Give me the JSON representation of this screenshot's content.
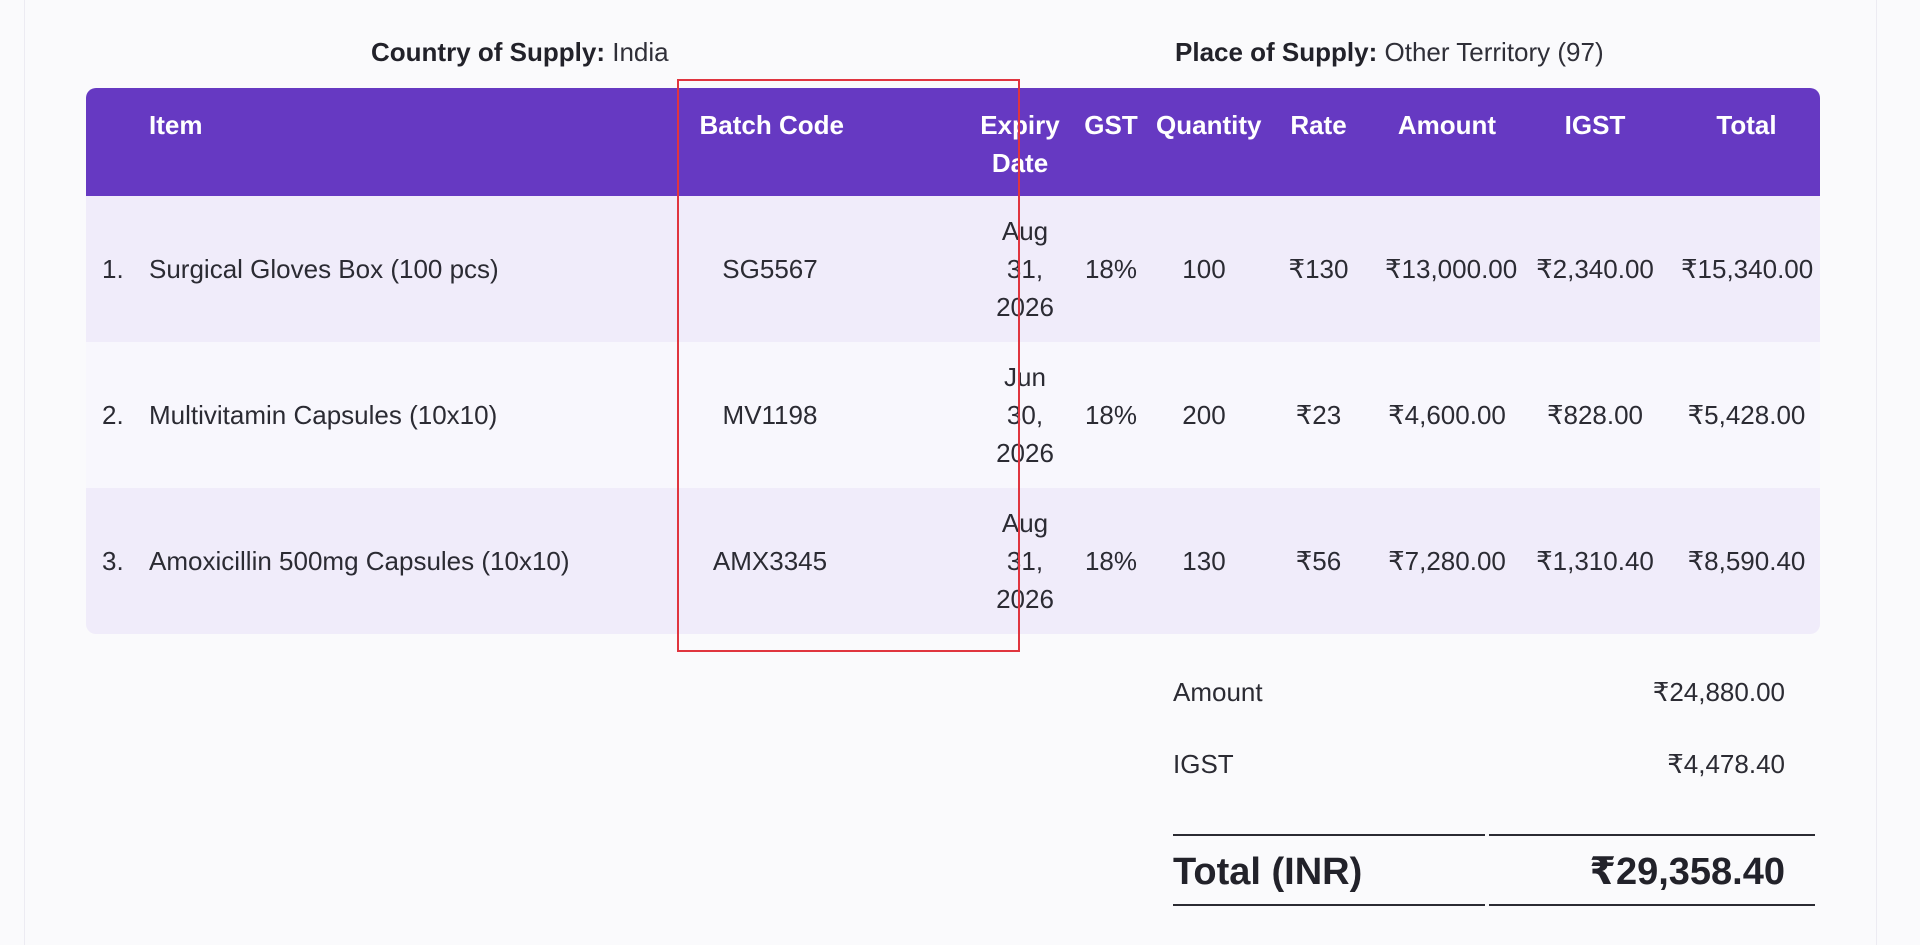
{
  "supply": {
    "country_label": "Country of Supply:",
    "country_value": "India",
    "place_label": "Place of Supply:",
    "place_value": "Other Territory (97)"
  },
  "table": {
    "headers": {
      "item": "Item",
      "batch_code": "Batch Code",
      "expiry_date": "Expiry Date",
      "gst": "GST",
      "quantity": "Quantity",
      "rate": "Rate",
      "amount": "Amount",
      "igst": "IGST",
      "total": "Total"
    },
    "rows": [
      {
        "index": "1.",
        "item": "Surgical Gloves Box (100 pcs)",
        "batch_code": "SG5567",
        "expiry_date": "Aug 31, 2026",
        "gst": "18%",
        "quantity": "100",
        "rate": "₹130",
        "amount": "₹13,000.00",
        "igst": "₹2,340.00",
        "total": "₹15,340.00"
      },
      {
        "index": "2.",
        "item": "Multivitamin Capsules (10x10)",
        "batch_code": "MV1198",
        "expiry_date": "Jun 30, 2026",
        "gst": "18%",
        "quantity": "200",
        "rate": "₹23",
        "amount": "₹4,600.00",
        "igst": "₹828.00",
        "total": "₹5,428.00"
      },
      {
        "index": "3.",
        "item": "Amoxicillin 500mg Capsules (10x10)",
        "batch_code": "AMX3345",
        "expiry_date": "Aug 31, 2026",
        "gst": "18%",
        "quantity": "130",
        "rate": "₹56",
        "amount": "₹7,280.00",
        "igst": "₹1,310.40",
        "total": "₹8,590.40"
      }
    ]
  },
  "summary": {
    "amount_label": "Amount",
    "amount_value": "₹24,880.00",
    "igst_label": "IGST",
    "igst_value": "₹4,478.40",
    "total_label": "Total (INR)",
    "total_value": "₹29,358.40"
  },
  "colors": {
    "header_bg": "#6639c2",
    "row_odd_bg": "#f0ecfa",
    "row_even_bg": "#f8f7fd",
    "highlight_border": "#e0353f"
  }
}
